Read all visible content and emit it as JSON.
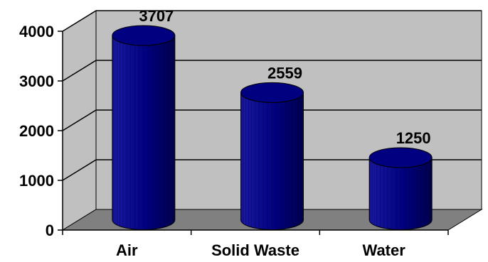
{
  "chart_data": {
    "type": "bar",
    "style": "3d-cylinder",
    "categories": [
      "Air",
      "Solid Waste",
      "Water"
    ],
    "values": [
      3707,
      2559,
      1250
    ],
    "data_labels": [
      "3707",
      "2559",
      "1250"
    ],
    "yticks": [
      0,
      1000,
      2000,
      3000,
      4000
    ],
    "ytick_labels": [
      "0",
      "1000",
      "2000",
      "3000",
      "4000"
    ],
    "ylim": [
      0,
      4000
    ],
    "grid": true,
    "legend": "none",
    "colors": {
      "bar": "#000080",
      "bar_dark": "#000050",
      "bar_light": "#1a1aa6",
      "wall": "#c0c0c0",
      "floor": "#808080",
      "grid": "#000000"
    }
  }
}
